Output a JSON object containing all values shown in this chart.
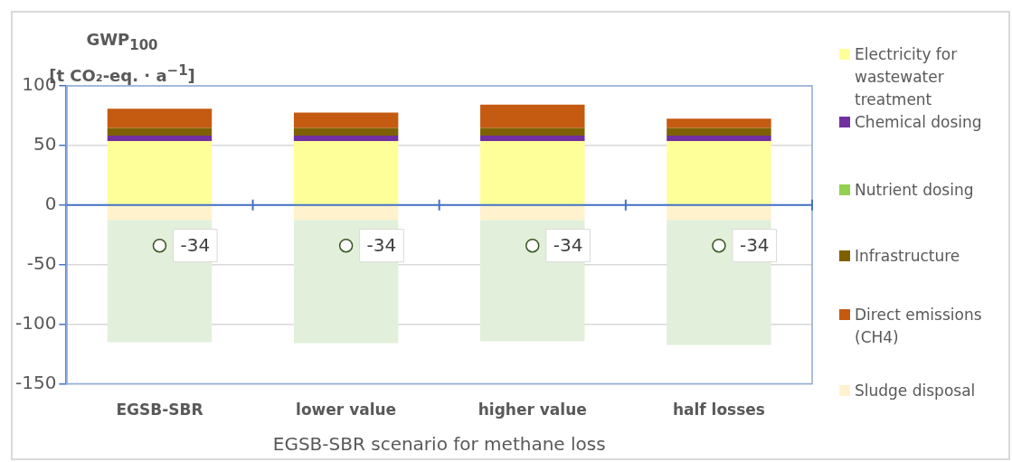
{
  "chart_data": {
    "type": "bar",
    "stacked": true,
    "ylabel": "GWP$_{100}$ [t CO₂-eq. · a$^{−1}$]",
    "xlabel": "EGSB-SBR scenario for methane loss",
    "categories": [
      "EGSB-SBR",
      "lower value",
      "higher value",
      "half losses"
    ],
    "series": [
      {
        "name": "Electricity for wastewater treatment",
        "color": "#ffff99",
        "values": [
          53.8,
          53.8,
          53.8,
          53.8
        ]
      },
      {
        "name": "Chemical dosing",
        "color": "#7030a0",
        "values": [
          4.4,
          4.4,
          4.4,
          4.4
        ]
      },
      {
        "name": "Nutrient dosing",
        "color": "#92d050",
        "values": [
          0,
          0,
          0,
          0
        ]
      },
      {
        "name": "Infrastructure",
        "color": "#7f6000",
        "values": [
          6.5,
          6.5,
          6.5,
          6.5
        ]
      },
      {
        "name": "Direct emissions (CH4)",
        "color": "#c55a11",
        "values": [
          16.2,
          13,
          19.5,
          7.8
        ]
      },
      {
        "name": "Sludge disposal",
        "color": "#fff2cc",
        "values": [
          -12.5,
          -12.5,
          -12.5,
          -12.5
        ]
      },
      {
        "color": "#e2efda",
        "values": [
          -102.5,
          -103.3,
          -101.8,
          -104.8
        ]
      },
      {
        "type": "scatter",
        "color": "#375623",
        "marker": "circle",
        "x": [
          "EGSB-SBR",
          "lower value",
          "higher value",
          "half losses"
        ],
        "values": [
          -34,
          -34,
          -34,
          -34
        ],
        "value_labels": [
          "-34",
          "-34",
          "-34",
          "-34"
        ]
      }
    ],
    "ylim": [
      -150,
      100
    ],
    "yticks": [
      -150,
      -100,
      -50,
      0,
      50,
      100
    ],
    "ref_lines": [
      {
        "axis": "y",
        "value": 0,
        "color": "#4472c4"
      }
    ],
    "grid": "y",
    "legend": "right"
  }
}
